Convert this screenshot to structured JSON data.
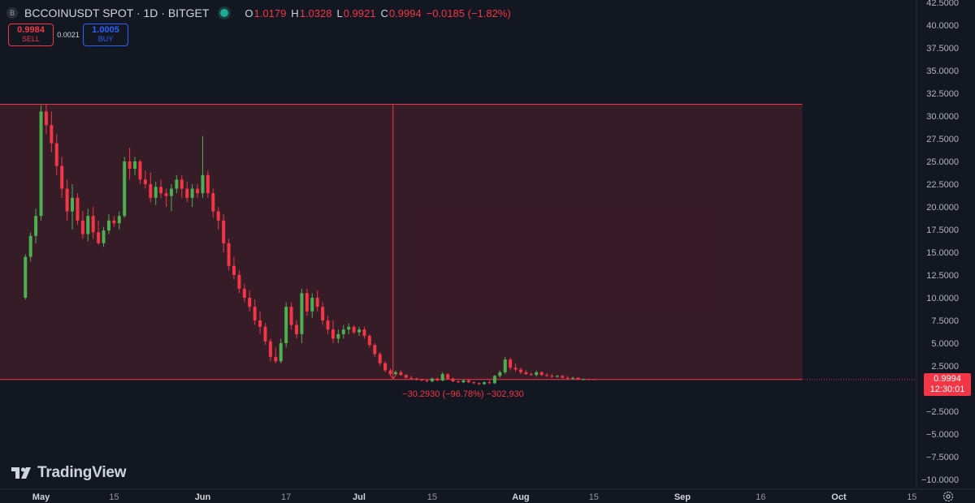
{
  "header": {
    "symbol_icon_letter": "B",
    "symbol": "BCCOINUSDT SPOT · 1D · BITGET",
    "open_label": "O",
    "open": "1.0179",
    "high_label": "H",
    "high": "1.0328",
    "low_label": "L",
    "low": "0.9921",
    "close_label": "C",
    "close": "0.9994",
    "change": "−0.0185 (−1.82%)"
  },
  "trade": {
    "sell_price": "0.9984",
    "sell_label": "SELL",
    "spread": "0.0021",
    "buy_price": "1.0005",
    "buy_label": "BUY"
  },
  "price_badge": {
    "price": "0.9994",
    "countdown": "12:30:01"
  },
  "measure": {
    "label": "−30.2930 (−96.78%) −302,930"
  },
  "logo": {
    "text": "TradingView"
  },
  "colors": {
    "background": "#131722",
    "up": "#22ab94",
    "up_candle": "#4caf50",
    "down": "#f23645",
    "text": "#d1d4dc",
    "buy": "#2962ff",
    "measure_fill": "rgba(242,54,69,0.16)"
  },
  "chart_data": {
    "type": "candlestick",
    "x_axis_type": "date",
    "y_axis": {
      "ylim": [
        -10.0,
        42.5
      ],
      "tick_labels": [
        "42.5000",
        "40.0000",
        "37.5000",
        "35.0000",
        "32.5000",
        "30.0000",
        "27.5000",
        "25.0000",
        "22.5000",
        "20.0000",
        "17.5000",
        "15.0000",
        "12.5000",
        "10.0000",
        "7.5000",
        "5.0000",
        "2.5000",
        "−2.5000",
        "−5.0000",
        "−7.5000",
        "−10.0000"
      ],
      "tick_values": [
        42.5,
        40,
        37.5,
        35,
        32.5,
        30,
        27.5,
        25,
        22.5,
        20,
        17.5,
        15,
        12.5,
        10,
        7.5,
        5,
        2.5,
        -2.5,
        -5,
        -7.5,
        -10
      ]
    },
    "x_axis": {
      "xlim": [
        "2024-04-25",
        "2024-10-19"
      ],
      "tick_labels": [
        "May",
        "15",
        "Jun",
        "17",
        "Jul",
        "15",
        "Aug",
        "15",
        "Sep",
        "16",
        "Oct",
        "15"
      ],
      "tick_dates": [
        "2024-05-01",
        "2024-05-15",
        "2024-06-01",
        "2024-06-17",
        "2024-07-01",
        "2024-07-15",
        "2024-08-01",
        "2024-08-15",
        "2024-09-01",
        "2024-09-16",
        "2024-10-01",
        "2024-10-15"
      ]
    },
    "last_price": 0.9994,
    "measure": {
      "from_date": "2024-04-20",
      "to_date": "2024-09-24",
      "high": 31.29,
      "low": 0.9994,
      "change": -30.293,
      "change_pct": -96.78
    },
    "start_date": "2024-04-28",
    "candles": [
      [
        10.0,
        14.8,
        9.8,
        14.5
      ],
      [
        14.5,
        17.2,
        14.0,
        16.8
      ],
      [
        16.8,
        19.8,
        16.0,
        19.0
      ],
      [
        19.0,
        31.2,
        18.5,
        30.5
      ],
      [
        30.5,
        31.3,
        28.0,
        29.0
      ],
      [
        29.0,
        30.5,
        26.0,
        27.0
      ],
      [
        27.0,
        28.0,
        23.5,
        24.5
      ],
      [
        24.5,
        25.5,
        21.0,
        22.0
      ],
      [
        22.0,
        23.0,
        18.5,
        19.5
      ],
      [
        19.5,
        22.5,
        17.5,
        21.0
      ],
      [
        21.0,
        21.5,
        18.0,
        18.5
      ],
      [
        18.5,
        19.5,
        16.5,
        17.0
      ],
      [
        17.0,
        19.8,
        16.2,
        19.0
      ],
      [
        19.0,
        20.0,
        16.5,
        17.2
      ],
      [
        17.2,
        18.5,
        15.8,
        16.0
      ],
      [
        16.0,
        17.8,
        15.6,
        17.4
      ],
      [
        17.4,
        19.2,
        17.0,
        18.5
      ],
      [
        18.5,
        19.0,
        17.8,
        18.2
      ],
      [
        18.2,
        19.5,
        17.5,
        19.0
      ],
      [
        19.0,
        25.5,
        18.8,
        25.0
      ],
      [
        25.0,
        26.5,
        23.0,
        24.2
      ],
      [
        24.2,
        25.5,
        23.5,
        25.0
      ],
      [
        25.0,
        25.2,
        22.5,
        23.0
      ],
      [
        23.0,
        24.0,
        22.0,
        22.5
      ],
      [
        22.5,
        23.8,
        20.5,
        21.0
      ],
      [
        21.0,
        22.8,
        20.2,
        22.2
      ],
      [
        22.2,
        23.0,
        21.0,
        21.5
      ],
      [
        21.5,
        22.0,
        20.0,
        21.2
      ],
      [
        21.2,
        22.5,
        19.5,
        22.0
      ],
      [
        22.0,
        23.5,
        21.5,
        23.0
      ],
      [
        23.0,
        23.5,
        21.0,
        22.0
      ],
      [
        22.0,
        22.8,
        20.5,
        21.0
      ],
      [
        21.0,
        22.5,
        20.0,
        22.0
      ],
      [
        22.0,
        22.5,
        21.0,
        21.5
      ],
      [
        21.5,
        27.8,
        21.0,
        23.5
      ],
      [
        23.5,
        24.0,
        21.0,
        21.5
      ],
      [
        21.5,
        22.0,
        18.8,
        19.5
      ],
      [
        19.5,
        20.0,
        17.5,
        18.5
      ],
      [
        18.5,
        19.2,
        15.0,
        16.0
      ],
      [
        16.0,
        16.5,
        13.0,
        13.5
      ],
      [
        13.5,
        14.5,
        12.0,
        12.5
      ],
      [
        12.5,
        13.0,
        10.5,
        11.0
      ],
      [
        11.0,
        11.5,
        9.5,
        10.0
      ],
      [
        10.0,
        10.8,
        8.5,
        9.0
      ],
      [
        9.0,
        9.8,
        7.0,
        7.5
      ],
      [
        7.5,
        8.5,
        6.0,
        6.8
      ],
      [
        6.8,
        7.2,
        4.8,
        5.2
      ],
      [
        5.2,
        5.5,
        3.0,
        3.5
      ],
      [
        3.5,
        4.5,
        2.8,
        3.0
      ],
      [
        3.0,
        5.5,
        2.8,
        5.0
      ],
      [
        5.0,
        9.5,
        4.5,
        9.0
      ],
      [
        9.0,
        9.5,
        6.5,
        7.0
      ],
      [
        7.0,
        7.5,
        5.5,
        6.0
      ],
      [
        6.0,
        11.0,
        5.0,
        10.5
      ],
      [
        10.5,
        11.0,
        8.0,
        8.5
      ],
      [
        8.5,
        10.5,
        7.8,
        10.0
      ],
      [
        10.0,
        10.8,
        8.5,
        9.0
      ],
      [
        9.0,
        9.5,
        7.0,
        7.5
      ],
      [
        7.5,
        8.0,
        6.0,
        6.5
      ],
      [
        6.5,
        7.5,
        5.0,
        5.5
      ],
      [
        5.5,
        6.5,
        5.0,
        6.0
      ],
      [
        6.0,
        7.0,
        5.5,
        6.5
      ],
      [
        6.5,
        7.2,
        6.0,
        6.8
      ],
      [
        6.8,
        7.0,
        6.0,
        6.2
      ],
      [
        6.2,
        6.8,
        5.8,
        6.5
      ],
      [
        6.5,
        6.8,
        5.5,
        5.8
      ],
      [
        5.8,
        6.0,
        4.5,
        4.8
      ],
      [
        4.8,
        5.0,
        3.5,
        3.8
      ],
      [
        3.8,
        4.0,
        2.5,
        2.8
      ],
      [
        2.8,
        3.0,
        1.8,
        2.0
      ],
      [
        2.0,
        2.2,
        1.5,
        1.6
      ],
      [
        1.6,
        2.0,
        1.5,
        1.8
      ],
      [
        1.8,
        2.0,
        1.4,
        1.5
      ],
      [
        1.5,
        1.6,
        1.1,
        1.2
      ],
      [
        1.2,
        1.4,
        1.0,
        1.1
      ],
      [
        1.1,
        1.2,
        0.9,
        1.0
      ],
      [
        1.0,
        1.1,
        0.8,
        0.9
      ],
      [
        0.9,
        1.0,
        0.7,
        0.8
      ],
      [
        0.8,
        1.2,
        0.7,
        1.1
      ],
      [
        1.1,
        1.2,
        0.8,
        0.9
      ],
      [
        0.9,
        1.8,
        0.8,
        1.6
      ],
      [
        1.6,
        1.7,
        1.0,
        1.1
      ],
      [
        1.1,
        1.2,
        0.7,
        0.8
      ],
      [
        0.8,
        0.9,
        0.6,
        0.7
      ],
      [
        0.7,
        1.0,
        0.6,
        0.9
      ],
      [
        0.9,
        1.0,
        0.6,
        0.7
      ],
      [
        0.7,
        0.8,
        0.5,
        0.6
      ],
      [
        0.6,
        0.7,
        0.4,
        0.5
      ],
      [
        0.5,
        0.8,
        0.4,
        0.7
      ],
      [
        0.7,
        0.9,
        0.5,
        0.6
      ],
      [
        0.6,
        1.5,
        0.5,
        1.4
      ],
      [
        1.4,
        2.0,
        1.2,
        1.8
      ],
      [
        1.8,
        3.5,
        1.6,
        3.2
      ],
      [
        3.2,
        3.4,
        2.0,
        2.3
      ],
      [
        2.3,
        2.8,
        1.9,
        2.1
      ],
      [
        2.1,
        2.3,
        1.6,
        1.8
      ],
      [
        1.8,
        2.0,
        1.5,
        1.6
      ],
      [
        1.6,
        1.8,
        1.4,
        1.5
      ],
      [
        1.5,
        2.0,
        1.3,
        1.8
      ],
      [
        1.8,
        1.9,
        1.4,
        1.5
      ],
      [
        1.5,
        1.7,
        1.3,
        1.4
      ],
      [
        1.4,
        1.6,
        1.2,
        1.3
      ],
      [
        1.3,
        1.5,
        1.2,
        1.4
      ],
      [
        1.4,
        1.5,
        1.1,
        1.2
      ],
      [
        1.2,
        1.4,
        1.0,
        1.1
      ],
      [
        1.1,
        1.3,
        1.0,
        1.2
      ],
      [
        1.2,
        1.2,
        0.95,
        1.0
      ],
      [
        1.0,
        1.1,
        0.9,
        1.05
      ],
      [
        1.05,
        1.1,
        0.95,
        1.0
      ],
      [
        1.0179,
        1.0328,
        0.9921,
        0.9994
      ]
    ]
  }
}
